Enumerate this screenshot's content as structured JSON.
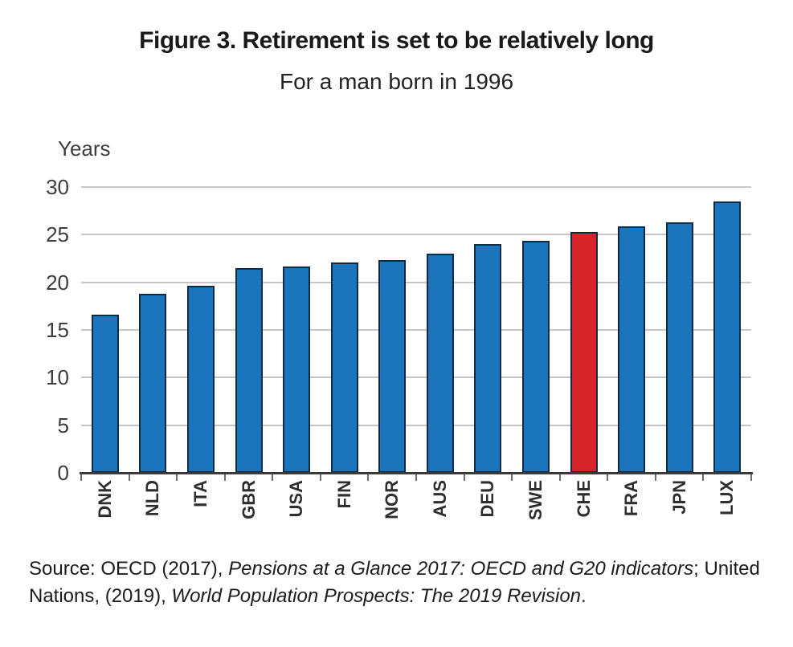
{
  "chart_data": {
    "type": "bar",
    "title": "Figure 3. Retirement is set to be relatively long",
    "subtitle": "For a man born in 1996",
    "ylabel": "Years",
    "xlabel": "",
    "ylim": [
      0,
      30
    ],
    "yticks": [
      0,
      5,
      10,
      15,
      20,
      25,
      30
    ],
    "grid": "horizontal",
    "legend": "none",
    "categories": [
      "DNK",
      "NLD",
      "ITA",
      "GBR",
      "USA",
      "FIN",
      "NOR",
      "AUS",
      "DEU",
      "SWE",
      "CHE",
      "FRA",
      "JPN",
      "LUX"
    ],
    "values": [
      16.6,
      18.8,
      19.6,
      21.5,
      21.7,
      22.1,
      22.3,
      23.0,
      24.0,
      24.4,
      25.3,
      25.9,
      26.3,
      28.5
    ],
    "highlight_category": "CHE",
    "colors": {
      "bar": "#1b75bc",
      "highlight": "#d9232b",
      "bar_border": "#122a45",
      "gridline": "#c6c6c6"
    }
  },
  "source": {
    "segments": [
      {
        "text": "Source: OECD (2017), ",
        "italic": false
      },
      {
        "text": "Pensions at a Glance 2017: OECD and G20 indicators",
        "italic": true
      },
      {
        "text": "; United Nations, (2019), ",
        "italic": false
      },
      {
        "text": "World Population Prospects: The 2019 Revision",
        "italic": true
      },
      {
        "text": ".",
        "italic": false
      }
    ]
  }
}
